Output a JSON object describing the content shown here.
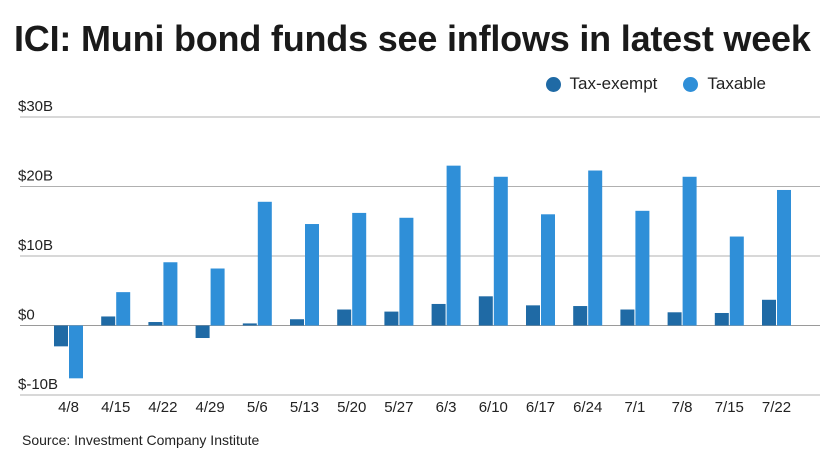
{
  "chart_data": {
    "type": "bar",
    "title": "ICI: Muni bond funds see inflows in latest week",
    "xlabel": "",
    "ylabel": "",
    "categories": [
      "4/8",
      "4/15",
      "4/22",
      "4/29",
      "5/6",
      "5/13",
      "5/20",
      "5/27",
      "6/3",
      "6/10",
      "6/17",
      "6/24",
      "7/1",
      "7/8",
      "7/15",
      "7/22"
    ],
    "series": [
      {
        "name": "Tax-exempt",
        "color": "#1f6aa5",
        "values": [
          -3.0,
          1.3,
          0.5,
          -1.8,
          0.3,
          0.9,
          2.3,
          2.0,
          3.1,
          4.2,
          2.9,
          2.8,
          2.3,
          1.9,
          1.8,
          3.7
        ]
      },
      {
        "name": "Taxable",
        "color": "#2f8fd8",
        "values": [
          -7.6,
          4.8,
          9.1,
          8.2,
          17.8,
          14.6,
          16.2,
          15.5,
          23.0,
          21.4,
          16.0,
          22.3,
          16.5,
          21.4,
          12.8,
          19.5
        ]
      }
    ],
    "yticks": [
      "$30B",
      "$20B",
      "$10B",
      "$0",
      "$-10B"
    ],
    "ytick_values": [
      30,
      20,
      10,
      0,
      -10
    ],
    "ylim": [
      -10,
      30
    ],
    "grid": true,
    "legend_position": "top-right",
    "source": "Source: Investment Company Institute"
  }
}
